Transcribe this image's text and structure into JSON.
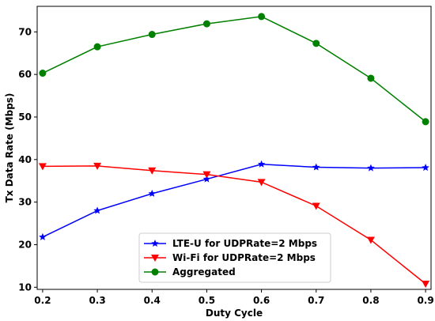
{
  "chart_data": {
    "type": "line",
    "xlabel": "Duty Cycle",
    "ylabel": "Tx Data Rate (Mbps)",
    "xlim": [
      0.19,
      0.91
    ],
    "ylim": [
      9.5,
      76
    ],
    "x": [
      0.2,
      0.3,
      0.4,
      0.5,
      0.6,
      0.7,
      0.8,
      0.9
    ],
    "x_ticks": [
      "0.2",
      "0.3",
      "0.4",
      "0.5",
      "0.6",
      "0.7",
      "0.8",
      "0.9"
    ],
    "y_ticks": [
      "10",
      "20",
      "30",
      "40",
      "50",
      "60",
      "70"
    ],
    "grid": false,
    "legend_position": "bottom-center",
    "series": [
      {
        "name": "LTE-U for UDPRate=2 Mbps",
        "color": "#0000ff",
        "marker": "star",
        "values": [
          21.8,
          28.0,
          32.0,
          35.4,
          38.9,
          38.2,
          38.0,
          38.1
        ]
      },
      {
        "name": "Wi-Fi for UDPRate=2 Mbps",
        "color": "#ff0000",
        "marker": "triangle-down",
        "values": [
          38.4,
          38.5,
          37.4,
          36.5,
          34.7,
          29.1,
          21.1,
          10.8
        ]
      },
      {
        "name": "Aggregated",
        "color": "#008000",
        "marker": "circle",
        "values": [
          60.3,
          66.5,
          69.4,
          71.9,
          73.6,
          67.3,
          59.1,
          48.9
        ]
      }
    ]
  }
}
